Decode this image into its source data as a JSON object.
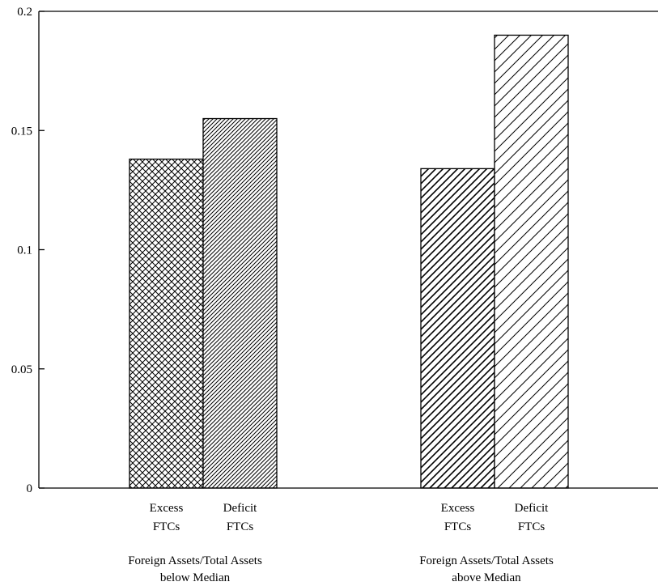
{
  "chart_data": {
    "type": "bar",
    "title": "",
    "xlabel": "",
    "ylabel": "",
    "ylim": [
      0,
      0.2
    ],
    "yticks": [
      "0",
      "0.05",
      "0.1",
      "0.15",
      "0.2"
    ],
    "grid": false,
    "legend": "none",
    "groups": [
      {
        "label_line1": "Foreign Assets/Total Assets",
        "label_line2": "below Median",
        "bars": [
          {
            "label_line1": "Excess",
            "label_line2": "FTCs",
            "value": 0.138,
            "pattern": "crosshatch"
          },
          {
            "label_line1": "Deficit",
            "label_line2": "FTCs",
            "value": 0.155,
            "pattern": "dense-diagonal"
          }
        ]
      },
      {
        "label_line1": "Foreign Assets/Total Assets",
        "label_line2": "above Median",
        "bars": [
          {
            "label_line1": "Excess",
            "label_line2": "FTCs",
            "value": 0.134,
            "pattern": "medium-diagonal"
          },
          {
            "label_line1": "Deficit",
            "label_line2": "FTCs",
            "value": 0.19,
            "pattern": "sparse-diagonal"
          }
        ]
      }
    ],
    "colors": {
      "stroke": "#000000",
      "fill": "#ffffff"
    }
  }
}
